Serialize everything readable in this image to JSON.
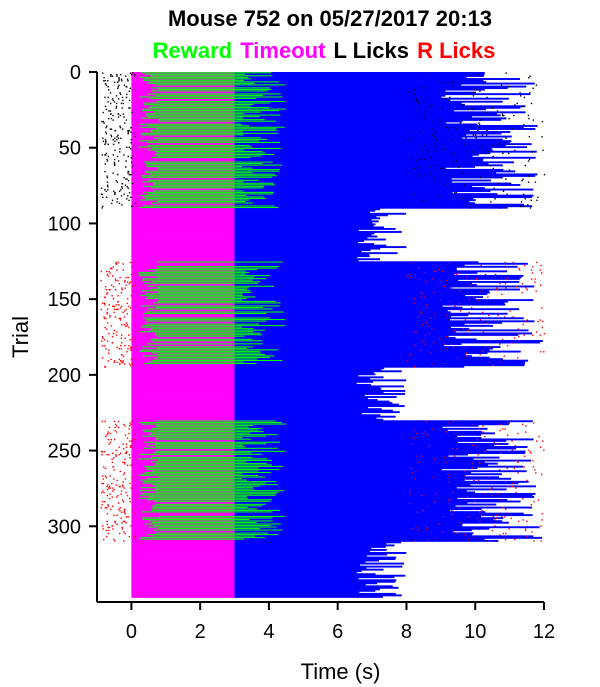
{
  "chart_data": {
    "type": "raster",
    "title": "Mouse 752 on 05/27/2017 20:13",
    "xlabel": "Time (s)",
    "ylabel": "Trial",
    "xlim": [
      -1,
      12
    ],
    "ylim": [
      350,
      0
    ],
    "xticks": [
      "0",
      "2",
      "4",
      "6",
      "8",
      "10",
      "12"
    ],
    "yticks": [
      "0",
      "50",
      "100",
      "150",
      "200",
      "250",
      "300"
    ],
    "legend": [
      {
        "name": "Reward",
        "color": "#00ff00"
      },
      {
        "name": "Timeout",
        "color": "#ff00ff"
      },
      {
        "name": "L Licks",
        "color": "#000000"
      },
      {
        "name": "R Licks",
        "color": "#ff0000"
      }
    ],
    "series_colors": {
      "response": "#0000ff",
      "reward": "#00ff00",
      "timeout": "#ff00ff",
      "l_licks": "#000000",
      "r_licks": "#ff0000"
    },
    "n_trials": 347,
    "blocks": [
      {
        "start": 0,
        "end": 90,
        "lick_side": "L"
      },
      {
        "start": 125,
        "end": 195,
        "lick_side": "R"
      },
      {
        "start": 230,
        "end": 310,
        "lick_side": "R"
      }
    ],
    "timeout_end_s": 3.0,
    "response_end_range_s": [
      6.5,
      12
    ]
  }
}
